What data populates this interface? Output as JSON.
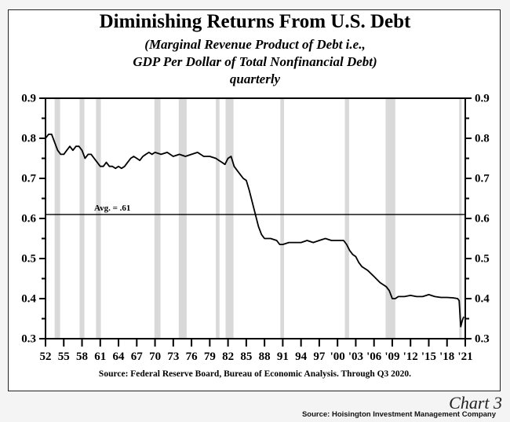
{
  "header": {
    "title": "Diminishing Returns From U.S. Debt",
    "subtitle_line1": "(Marginal Revenue Product of Debt i.e.,",
    "subtitle_line2": "GDP Per Dollar of Total Nonfinancial Debt)",
    "subtitle_line3": "quarterly"
  },
  "footer": {
    "source": "Source:  Federal Reserve Board, Bureau of Economic Analysis.  Through Q3 2020.",
    "chart_label": "Chart 3",
    "attribution": "Source: Hoisington Investment Management Company"
  },
  "annotation": {
    "avg_label": "Avg. = .61",
    "avg_value": 0.61
  },
  "colors": {
    "line": "#000000",
    "recession_band": "#d9d9d9",
    "background": "#ffffff"
  },
  "chart_data": {
    "type": "line",
    "title": "Diminishing Returns From U.S. Debt",
    "subtitle": "(Marginal Revenue Product of Debt i.e., GDP Per Dollar of Total Nonfinancial Debt) quarterly",
    "xlabel": "",
    "ylabel": "",
    "ylim": [
      0.3,
      0.9
    ],
    "xlim": [
      1952,
      2021
    ],
    "y_ticks": [
      "0.3",
      "0.4",
      "0.5",
      "0.6",
      "0.7",
      "0.8",
      "0.9"
    ],
    "x_tick_labels": [
      "52",
      "55",
      "58",
      "61",
      "64",
      "67",
      "70",
      "73",
      "76",
      "79",
      "82",
      "85",
      "88",
      "91",
      "94",
      "97",
      "'00",
      "'03",
      "'06",
      "'09",
      "'12",
      "'15",
      "'18",
      "'21"
    ],
    "grid": false,
    "legend": null,
    "series": [
      {
        "name": "GDP per dollar of total nonfinancial debt",
        "x": [
          1952.0,
          1952.5,
          1953.0,
          1953.5,
          1954.0,
          1954.5,
          1955.0,
          1955.5,
          1956.0,
          1956.5,
          1957.0,
          1957.5,
          1958.0,
          1958.5,
          1959.0,
          1959.5,
          1960.0,
          1960.5,
          1961.0,
          1961.5,
          1962.0,
          1962.5,
          1963.0,
          1963.5,
          1964.0,
          1964.5,
          1965.0,
          1965.5,
          1966.0,
          1966.5,
          1967.0,
          1967.5,
          1968.0,
          1968.5,
          1969.0,
          1969.5,
          1970.0,
          1971.0,
          1972.0,
          1973.0,
          1974.0,
          1975.0,
          1976.0,
          1977.0,
          1978.0,
          1979.0,
          1980.0,
          1980.5,
          1981.0,
          1981.5,
          1982.0,
          1982.5,
          1983.0,
          1983.5,
          1984.0,
          1984.5,
          1985.0,
          1985.5,
          1986.0,
          1986.5,
          1987.0,
          1987.5,
          1988.0,
          1989.0,
          1990.0,
          1990.5,
          1991.0,
          1992.0,
          1993.0,
          1994.0,
          1995.0,
          1996.0,
          1997.0,
          1998.0,
          1999.0,
          2000.0,
          2000.5,
          2001.0,
          2001.5,
          2002.0,
          2002.5,
          2003.0,
          2003.5,
          2004.0,
          2005.0,
          2006.0,
          2007.0,
          2008.0,
          2008.5,
          2009.0,
          2009.5,
          2010.0,
          2011.0,
          2012.0,
          2013.0,
          2014.0,
          2015.0,
          2016.0,
          2017.0,
          2018.0,
          2019.0,
          2019.75,
          2020.0,
          2020.25,
          2020.5,
          2020.75
        ],
        "values": [
          0.8,
          0.81,
          0.81,
          0.79,
          0.77,
          0.76,
          0.76,
          0.77,
          0.78,
          0.77,
          0.78,
          0.78,
          0.77,
          0.75,
          0.76,
          0.76,
          0.75,
          0.74,
          0.73,
          0.73,
          0.74,
          0.73,
          0.73,
          0.725,
          0.73,
          0.725,
          0.73,
          0.74,
          0.75,
          0.755,
          0.75,
          0.745,
          0.755,
          0.76,
          0.765,
          0.76,
          0.765,
          0.76,
          0.765,
          0.755,
          0.76,
          0.755,
          0.76,
          0.765,
          0.755,
          0.755,
          0.75,
          0.745,
          0.74,
          0.735,
          0.75,
          0.755,
          0.73,
          0.72,
          0.71,
          0.7,
          0.695,
          0.67,
          0.64,
          0.61,
          0.58,
          0.56,
          0.55,
          0.55,
          0.545,
          0.535,
          0.535,
          0.54,
          0.54,
          0.54,
          0.545,
          0.54,
          0.545,
          0.55,
          0.545,
          0.545,
          0.545,
          0.545,
          0.535,
          0.52,
          0.51,
          0.505,
          0.49,
          0.48,
          0.47,
          0.455,
          0.44,
          0.43,
          0.42,
          0.4,
          0.4,
          0.405,
          0.405,
          0.408,
          0.405,
          0.405,
          0.41,
          0.405,
          0.403,
          0.403,
          0.402,
          0.4,
          0.395,
          0.33,
          0.345,
          0.355
        ]
      }
    ],
    "reference_lines": [
      {
        "type": "horizontal",
        "value": 0.61,
        "label": "Avg. = .61"
      }
    ],
    "shaded_regions_recessions": [
      [
        1953.5,
        1954.4
      ],
      [
        1957.6,
        1958.4
      ],
      [
        1960.3,
        1961.1
      ],
      [
        1969.9,
        1970.9
      ],
      [
        1973.9,
        1975.2
      ],
      [
        1980.0,
        1980.6
      ],
      [
        1981.6,
        1982.9
      ],
      [
        1990.6,
        1991.2
      ],
      [
        2001.2,
        2001.9
      ],
      [
        2007.9,
        2009.5
      ],
      [
        2020.0,
        2020.4
      ]
    ]
  }
}
